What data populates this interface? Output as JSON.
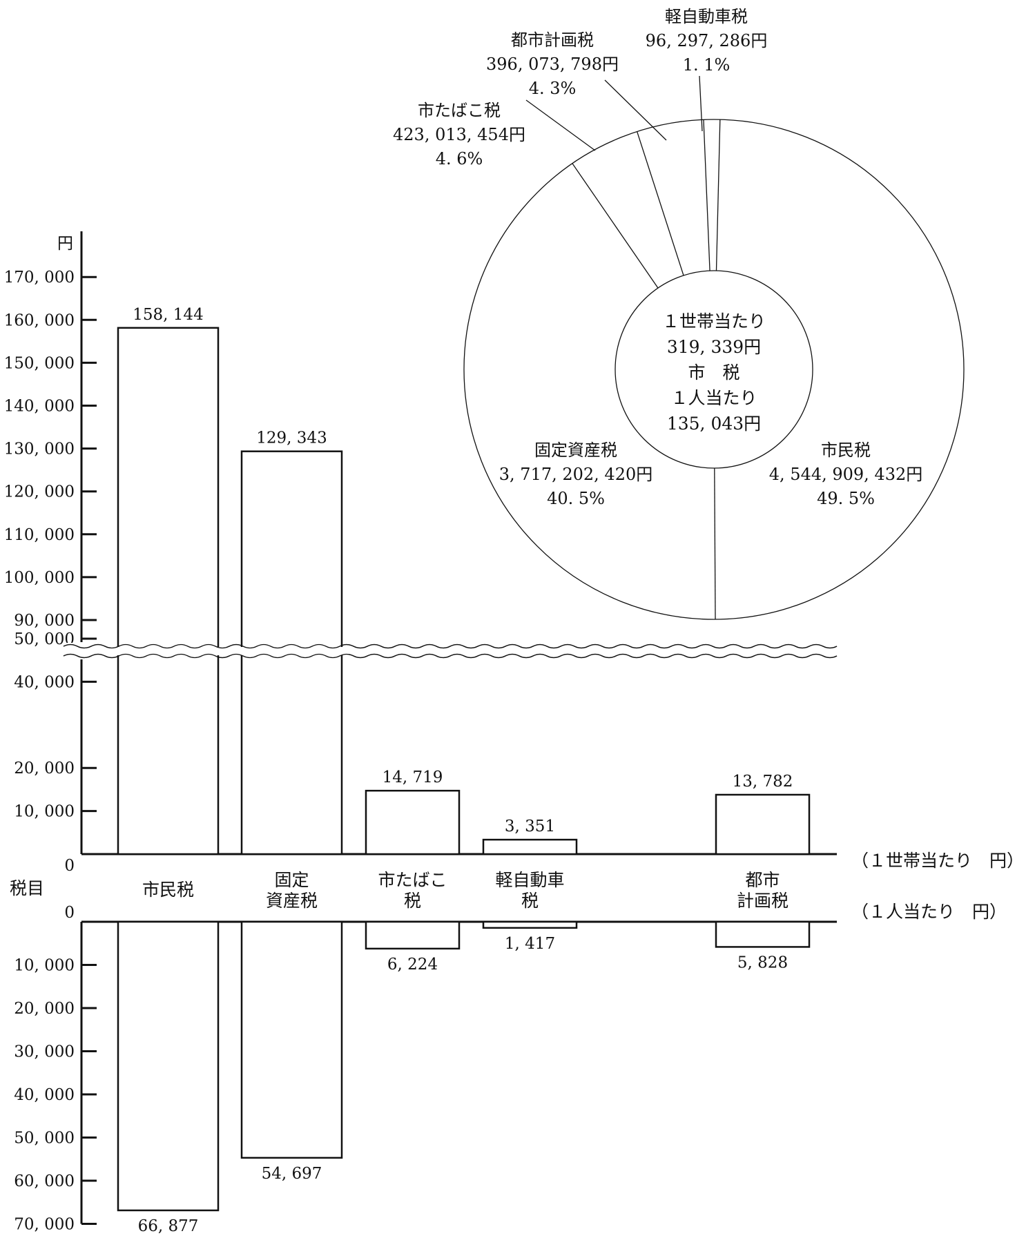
{
  "chart_data": [
    {
      "type": "bar",
      "unit_label": "円",
      "axis_title": "税目",
      "categories": [
        {
          "lines": [
            "市民税"
          ]
        },
        {
          "lines": [
            "固定",
            "資産税"
          ]
        },
        {
          "lines": [
            "市たばこ",
            "税"
          ]
        },
        {
          "lines": [
            "軽自動車",
            "税"
          ]
        },
        {
          "lines": [
            "都市",
            "計画税"
          ]
        }
      ],
      "series": [
        {
          "name": "（１世帯当たり　円）",
          "values": [
            158144,
            129343,
            14719,
            3351,
            13782
          ],
          "value_labels": [
            "158, 144",
            "129, 343",
            "14, 719",
            "3, 351",
            "13, 782"
          ]
        },
        {
          "name": "（１人当たり　円）",
          "values": [
            66877,
            54697,
            6224,
            1417,
            5828
          ],
          "value_labels": [
            "66, 877",
            "54, 697",
            "6, 224",
            "1, 417",
            "5, 828"
          ]
        }
      ],
      "upper_ticks": {
        "low": {
          "values": [
            0,
            10000,
            20000,
            40000,
            50000
          ],
          "labels": [
            "0",
            "10, 000",
            "20, 000",
            "40, 000",
            "50, 000"
          ]
        },
        "high": {
          "values": [
            90000,
            100000,
            110000,
            120000,
            130000,
            140000,
            150000,
            160000,
            170000
          ],
          "labels": [
            "90, 000",
            "100, 000",
            "110, 000",
            "120, 000",
            "130, 000",
            "140, 000",
            "150, 000",
            "160, 000",
            "170, 000"
          ]
        }
      },
      "lower_ticks": {
        "values": [
          0,
          10000,
          20000,
          30000,
          40000,
          50000,
          60000,
          70000
        ],
        "labels": [
          "0",
          "10, 000",
          "20, 000",
          "30, 000",
          "40, 000",
          "50, 000",
          "60, 000",
          "70, 000"
        ]
      },
      "axis_break": true
    },
    {
      "type": "pie",
      "style": "donut",
      "center_text": [
        "１世帯当たり",
        "319, 339円",
        "市　税",
        "１人当たり",
        "135, 043円"
      ],
      "slices": [
        {
          "name": "市民税",
          "value": 4544909432,
          "amount_label": "4, 544, 909, 432円",
          "percent": 49.5,
          "percent_label": "49. 5%"
        },
        {
          "name": "固定資産税",
          "value": 3717202420,
          "amount_label": "3, 717, 202, 420円",
          "percent": 40.5,
          "percent_label": "40. 5%"
        },
        {
          "name": "市たばこ税",
          "value": 423013454,
          "amount_label": "423, 013, 454円",
          "percent": 4.6,
          "percent_label": "4. 6%"
        },
        {
          "name": "都市計画税",
          "value": 396073798,
          "amount_label": "396, 073, 798円",
          "percent": 4.3,
          "percent_label": "4. 3%"
        },
        {
          "name": "軽自動車税",
          "value": 96297286,
          "amount_label": "96, 297, 286円",
          "percent": 1.1,
          "percent_label": "1. 1%"
        }
      ]
    }
  ]
}
